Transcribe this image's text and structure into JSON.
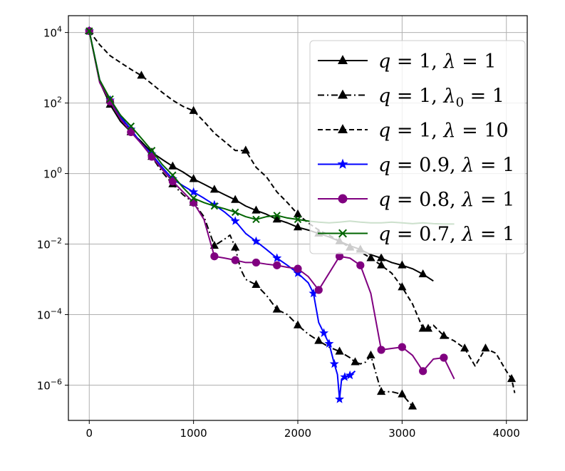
{
  "chart_data": {
    "type": "line",
    "title": "",
    "xlabel": "",
    "ylabel": "",
    "x_scale": "linear",
    "y_scale": "log",
    "xlim": [
      -200,
      4200
    ],
    "ylim": [
      1e-07,
      30000.0
    ],
    "x_ticks": [
      0,
      1000,
      2000,
      3000,
      4000
    ],
    "x_tick_labels": [
      "0",
      "1000",
      "2000",
      "3000",
      "4000"
    ],
    "y_ticks": [
      1e-06,
      0.0001,
      0.01,
      1,
      100.0,
      10000.0
    ],
    "y_tick_labels": [
      {
        "base": "10",
        "exp": "−6"
      },
      {
        "base": "10",
        "exp": "−4"
      },
      {
        "base": "10",
        "exp": "−2"
      },
      {
        "base": "10",
        "exp": "0"
      },
      {
        "base": "10",
        "exp": "2"
      },
      {
        "base": "10",
        "exp": "4"
      }
    ],
    "grid": true,
    "legend_position": "top-right",
    "series": [
      {
        "name": "q = 1, λ = 1",
        "legend_parts": [
          "q",
          " = 1, ",
          "λ",
          " = 1"
        ],
        "color": "#000000",
        "linestyle": "solid",
        "marker": "triangle",
        "x": [
          0,
          100,
          200,
          300,
          400,
          500,
          600,
          700,
          800,
          900,
          1000,
          1100,
          1200,
          1300,
          1400,
          1500,
          1600,
          1700,
          1800,
          1900,
          2000,
          2100,
          2200,
          2300,
          2400,
          2500,
          2600,
          2700,
          2800,
          2900,
          3000,
          3100,
          3200,
          3300
        ],
        "y": [
          11000,
          400,
          90,
          30,
          15,
          8,
          4,
          2.5,
          1.6,
          1.1,
          0.7,
          0.5,
          0.35,
          0.25,
          0.18,
          0.12,
          0.09,
          0.07,
          0.05,
          0.04,
          0.03,
          0.025,
          0.02,
          0.016,
          0.012,
          0.009,
          0.007,
          0.005,
          0.004,
          0.003,
          0.0025,
          0.002,
          0.0014,
          0.0009
        ],
        "marker_x": [
          0,
          200,
          400,
          600,
          800,
          1000,
          1200,
          1400,
          1600,
          1800,
          2000,
          2200,
          2400,
          2600,
          2800,
          3000,
          3200
        ]
      },
      {
        "name": "q = 1, λ0 = 1",
        "legend_parts": [
          "q",
          " = 1, ",
          "λ",
          "0",
          " = 1"
        ],
        "color": "#000000",
        "linestyle": "dashdot",
        "marker": "triangle",
        "x": [
          0,
          100,
          200,
          300,
          400,
          500,
          600,
          700,
          800,
          900,
          1000,
          1100,
          1200,
          1300,
          1350,
          1400,
          1450,
          1500,
          1600,
          1700,
          1800,
          1900,
          2000,
          2100,
          2200,
          2300,
          2400,
          2500,
          2550,
          2600,
          2650,
          2700,
          2800,
          2900,
          3000,
          3100
        ],
        "y": [
          11000,
          400,
          120,
          45,
          15,
          8,
          3,
          1.1,
          0.5,
          0.25,
          0.15,
          0.06,
          0.009,
          0.014,
          0.018,
          0.008,
          0.002,
          0.001,
          0.0007,
          0.00035,
          0.00014,
          0.0001,
          5e-05,
          2.8e-05,
          1.8e-05,
          1.2e-05,
          9e-06,
          6e-06,
          4.5e-06,
          4e-06,
          4.5e-06,
          7e-06,
          6.5e-07,
          6.5e-07,
          5.5e-07,
          2.5e-07
        ],
        "marker_x": [
          0,
          200,
          400,
          600,
          800,
          1000,
          1200,
          1400,
          1600,
          1800,
          2000,
          2200,
          2400,
          2550,
          2700,
          2800,
          3000,
          3100
        ]
      },
      {
        "name": "q = 1, λ = 10",
        "legend_parts": [
          "q",
          " = 1, ",
          "λ",
          " = 10"
        ],
        "color": "#000000",
        "linestyle": "dashed",
        "marker": "triangle",
        "x": [
          0,
          100,
          200,
          300,
          400,
          500,
          600,
          700,
          800,
          900,
          1000,
          1100,
          1200,
          1300,
          1400,
          1500,
          1600,
          1700,
          1800,
          1900,
          2000,
          2100,
          2200,
          2300,
          2400,
          2500,
          2600,
          2700,
          2800,
          2900,
          3000,
          3100,
          3200,
          3250,
          3300,
          3400,
          3500,
          3600,
          3700,
          3800,
          3900,
          4000,
          4050,
          4080
        ],
        "y": [
          11000,
          4500,
          2200,
          1400,
          900,
          600,
          350,
          200,
          120,
          80,
          60,
          30,
          14,
          8,
          4.5,
          4.5,
          1.5,
          0.8,
          0.3,
          0.15,
          0.07,
          0.04,
          0.025,
          0.018,
          0.012,
          0.008,
          0.006,
          0.004,
          0.0025,
          0.0015,
          0.0006,
          0.0002,
          4e-05,
          4e-05,
          5e-05,
          2.5e-05,
          1.8e-05,
          1.1e-05,
          3.5e-06,
          1.1e-05,
          8e-06,
          2.5e-06,
          1.5e-06,
          6e-07
        ],
        "marker_x": [
          0,
          500,
          1000,
          1500,
          2000,
          2500,
          2700,
          2800,
          3000,
          3200,
          3250,
          3400,
          3600,
          3800,
          3950,
          4050
        ]
      },
      {
        "name": "q = 0.9, λ = 1",
        "legend_parts": [
          "q",
          " = 0.9, ",
          "λ",
          " = 1"
        ],
        "color": "#0000ff",
        "linestyle": "solid",
        "marker": "star",
        "x": [
          0,
          100,
          200,
          300,
          400,
          500,
          600,
          700,
          800,
          900,
          1000,
          1100,
          1200,
          1300,
          1400,
          1500,
          1600,
          1700,
          1800,
          1900,
          2000,
          2100,
          2150,
          2200,
          2250,
          2300,
          2350,
          2380,
          2400,
          2420,
          2450,
          2500,
          2550
        ],
        "y": [
          11000,
          450,
          120,
          40,
          18,
          7,
          3.5,
          1.5,
          0.7,
          0.45,
          0.3,
          0.2,
          0.13,
          0.08,
          0.045,
          0.02,
          0.012,
          0.007,
          0.004,
          0.0025,
          0.0015,
          0.0008,
          0.0004,
          6e-05,
          3e-05,
          1.5e-05,
          4e-06,
          2e-06,
          4e-07,
          1.5e-06,
          1.7e-06,
          1.9e-06,
          2.5e-06
        ],
        "marker_x": [
          0,
          200,
          400,
          600,
          800,
          1000,
          1200,
          1400,
          1600,
          1800,
          2000,
          2150,
          2250,
          2300,
          2350,
          2400,
          2450,
          2500
        ]
      },
      {
        "name": "q = 0.8, λ = 1",
        "legend_parts": [
          "q",
          " = 0.8, ",
          "λ",
          " = 1"
        ],
        "color": "#800080",
        "linestyle": "solid",
        "marker": "circle",
        "x": [
          0,
          100,
          200,
          300,
          400,
          500,
          600,
          700,
          800,
          900,
          1000,
          1100,
          1200,
          1300,
          1400,
          1500,
          1600,
          1700,
          1800,
          1900,
          2000,
          2100,
          2200,
          2300,
          2400,
          2500,
          2600,
          2700,
          2800,
          2900,
          3000,
          3100,
          3200,
          3300,
          3400,
          3500
        ],
        "y": [
          11000,
          380,
          110,
          35,
          15,
          7,
          3,
          1.3,
          0.6,
          0.3,
          0.15,
          0.05,
          0.0045,
          0.004,
          0.0035,
          0.003,
          0.003,
          0.0027,
          0.0025,
          0.0022,
          0.002,
          0.0012,
          0.0005,
          0.0015,
          0.0045,
          0.004,
          0.0025,
          0.0004,
          1e-05,
          1.1e-05,
          1.2e-05,
          7e-06,
          2.5e-06,
          5.5e-06,
          6e-06,
          1.5e-06
        ],
        "marker_x": [
          0,
          200,
          400,
          600,
          800,
          1000,
          1200,
          1400,
          1600,
          1800,
          2000,
          2200,
          2400,
          2600,
          2800,
          3000,
          3200,
          3400
        ]
      },
      {
        "name": "q = 0.7, λ = 1",
        "legend_parts": [
          "q",
          " = 0.7, ",
          "λ",
          " = 1"
        ],
        "color": "#006400",
        "linestyle": "solid",
        "marker": "x",
        "x": [
          0,
          100,
          200,
          300,
          400,
          500,
          600,
          700,
          800,
          900,
          1000,
          1100,
          1200,
          1300,
          1400,
          1500,
          1600,
          1700,
          1800,
          1900,
          2000,
          2100,
          2200,
          2300,
          2400,
          2500,
          2600,
          2700,
          2800,
          2900,
          3000,
          3100,
          3200,
          3300,
          3400,
          3500
        ],
        "y": [
          11000,
          450,
          130,
          45,
          22,
          10,
          4.5,
          1.8,
          0.9,
          0.4,
          0.2,
          0.15,
          0.12,
          0.1,
          0.08,
          0.06,
          0.05,
          0.06,
          0.065,
          0.055,
          0.05,
          0.045,
          0.042,
          0.04,
          0.042,
          0.045,
          0.042,
          0.04,
          0.04,
          0.042,
          0.04,
          0.038,
          0.04,
          0.038,
          0.037,
          0.037
        ],
        "marker_x": [
          0,
          200,
          400,
          600,
          800,
          1000,
          1200,
          1400,
          1600,
          1800,
          2000
        ]
      }
    ]
  }
}
